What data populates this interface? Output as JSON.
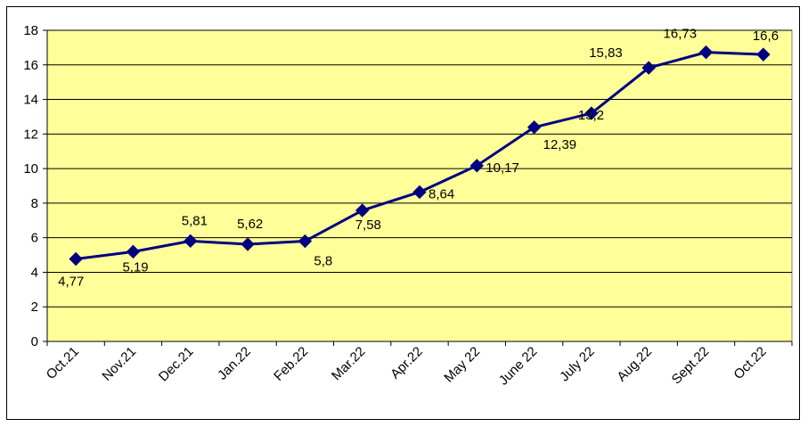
{
  "chart_data": {
    "type": "line",
    "categories": [
      "Oct.21",
      "Nov.21",
      "Dec.21",
      "Jan.22",
      "Feb.22",
      "Mar.22",
      "Apr.22",
      "May 22",
      "June 22",
      "July 22",
      "Aug.22",
      "Sept.22",
      "Oct.22"
    ],
    "series": [
      {
        "values": [
          4.77,
          5.19,
          5.81,
          5.62,
          5.8,
          7.58,
          8.64,
          10.17,
          12.39,
          13.2,
          15.83,
          16.73,
          16.6
        ],
        "data_labels": [
          "4,77",
          "5,19",
          "5,81",
          "5,62",
          "5,8",
          "7,58",
          "8,64",
          "10,17",
          "12,39",
          "13,2",
          "15,83",
          "16,73",
          "16,6"
        ],
        "color": "#000080",
        "marker": "diamond"
      }
    ],
    "title": "",
    "xlabel": "",
    "ylabel": "",
    "ylim": [
      0,
      18
    ],
    "yticks": [
      0,
      2,
      4,
      6,
      8,
      10,
      12,
      14,
      16,
      18
    ],
    "grid": true,
    "legend": "none",
    "plot_background": "#FFFF99"
  }
}
